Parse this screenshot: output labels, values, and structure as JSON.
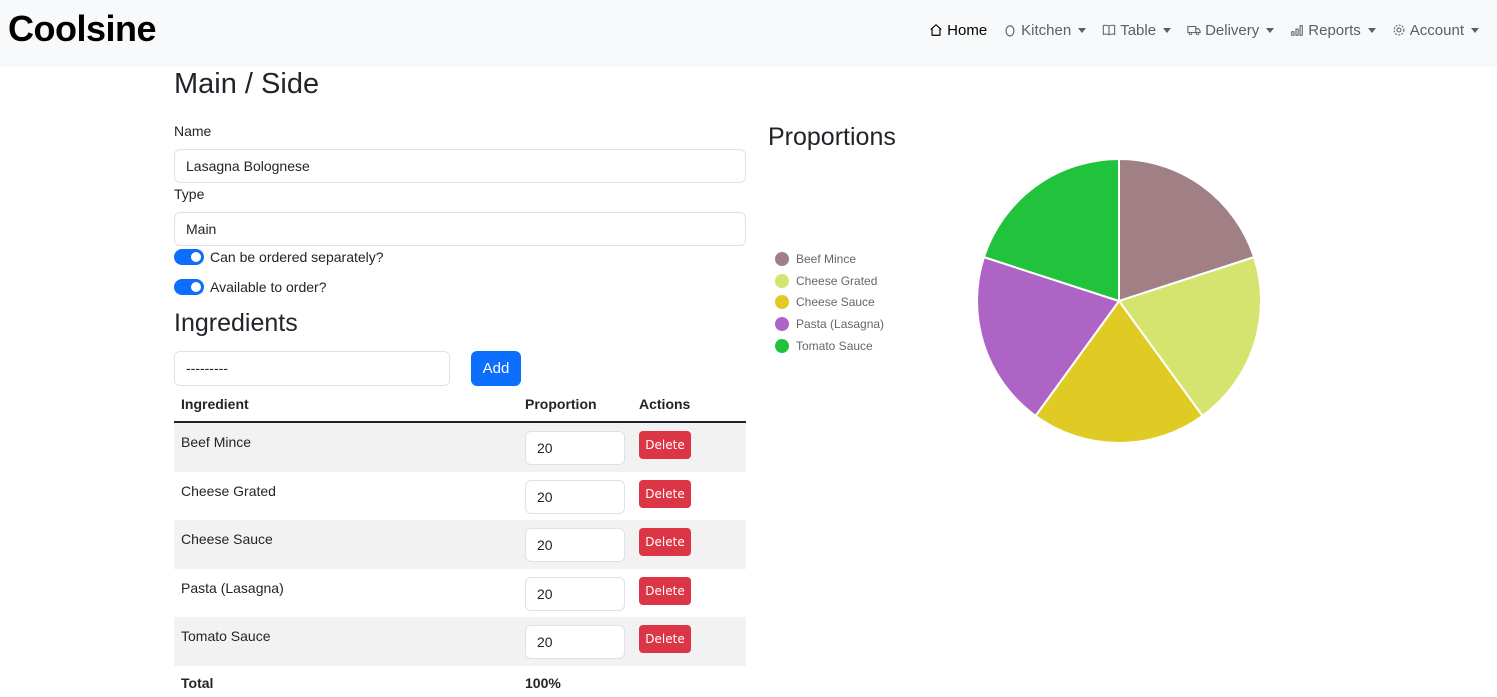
{
  "brand": "Coolsine",
  "nav": {
    "home": "Home",
    "kitchen": "Kitchen",
    "table": "Table",
    "delivery": "Delivery",
    "reports": "Reports",
    "account": "Account"
  },
  "form": {
    "title": "Main / Side",
    "name_label": "Name",
    "name_value": "Lasagna Bolognese",
    "type_label": "Type",
    "type_value": "Main",
    "separate_label": "Can be ordered separately?",
    "separate_on": true,
    "available_label": "Available to order?",
    "available_on": true
  },
  "ingredients": {
    "title": "Ingredients",
    "select_value": "---------",
    "add_label": "Add",
    "headers": {
      "ingredient": "Ingredient",
      "proportion": "Proportion",
      "actions": "Actions"
    },
    "rows": [
      {
        "name": "Beef Mince",
        "proportion": "20",
        "action": "Delete"
      },
      {
        "name": "Cheese Grated",
        "proportion": "20",
        "action": "Delete"
      },
      {
        "name": "Cheese Sauce",
        "proportion": "20",
        "action": "Delete"
      },
      {
        "name": "Pasta (Lasagna)",
        "proportion": "20",
        "action": "Delete"
      },
      {
        "name": "Tomato Sauce",
        "proportion": "20",
        "action": "Delete"
      }
    ],
    "total_label": "Total",
    "total_value": "100%"
  },
  "chart": {
    "title": "Proportions"
  },
  "chart_data": {
    "type": "pie",
    "title": "Proportions",
    "legend_position": "left",
    "categories": [
      "Beef Mince",
      "Cheese Grated",
      "Cheese Sauce",
      "Pasta (Lasagna)",
      "Tomato Sauce"
    ],
    "values": [
      20,
      20,
      20,
      20,
      20
    ],
    "colors": [
      "#a08085",
      "#d4e46f",
      "#e0cb25",
      "#ad64c5",
      "#22c33c"
    ]
  }
}
